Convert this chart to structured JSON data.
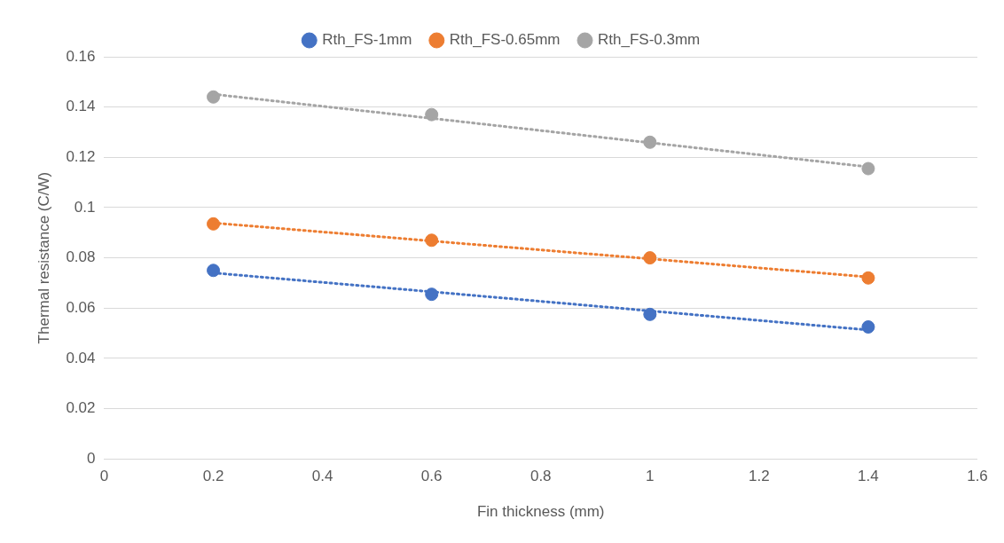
{
  "chart_data": {
    "type": "scatter",
    "xlabel": "Fin thickness (mm)",
    "ylabel": "Thermal resistance (C/W)",
    "legend": "top",
    "grid": "y",
    "marker": "circle",
    "xlim": [
      0,
      1.6
    ],
    "xticks": [
      0,
      0.2,
      0.4,
      0.6,
      0.8,
      1,
      1.2,
      1.4,
      1.6
    ],
    "ylim": [
      0,
      0.16
    ],
    "yticks": [
      0,
      0.02,
      0.04,
      0.06,
      0.08,
      0.1,
      0.12,
      0.14,
      0.16
    ],
    "x": [
      0.2,
      0.6,
      1,
      1.4
    ],
    "series": [
      {
        "name": "Rth_FS-1mm",
        "color": "#4472c4",
        "values": [
          0.075,
          0.0655,
          0.0575,
          0.0525
        ]
      },
      {
        "name": "Rth_FS-0.65mm",
        "color": "#ed7d31",
        "values": [
          0.0935,
          0.087,
          0.08,
          0.072
        ]
      },
      {
        "name": "Rth_FS-0.3mm",
        "color": "#a5a5a5",
        "values": [
          0.144,
          0.137,
          0.126,
          0.1155
        ]
      },
      {
        "type": "line",
        "color": "#4472c4",
        "line_style": "dotted",
        "marker": "none",
        "values": [
          0.074,
          0.0665,
          0.0589,
          0.0513
        ]
      },
      {
        "type": "line",
        "color": "#ed7d31",
        "line_style": "dotted",
        "marker": "none",
        "values": [
          0.0939,
          0.0867,
          0.0796,
          0.0724
        ]
      },
      {
        "type": "line",
        "color": "#a5a5a5",
        "line_style": "dotted",
        "marker": "none",
        "values": [
          0.1451,
          0.1355,
          0.1258,
          0.1162
        ]
      }
    ]
  }
}
